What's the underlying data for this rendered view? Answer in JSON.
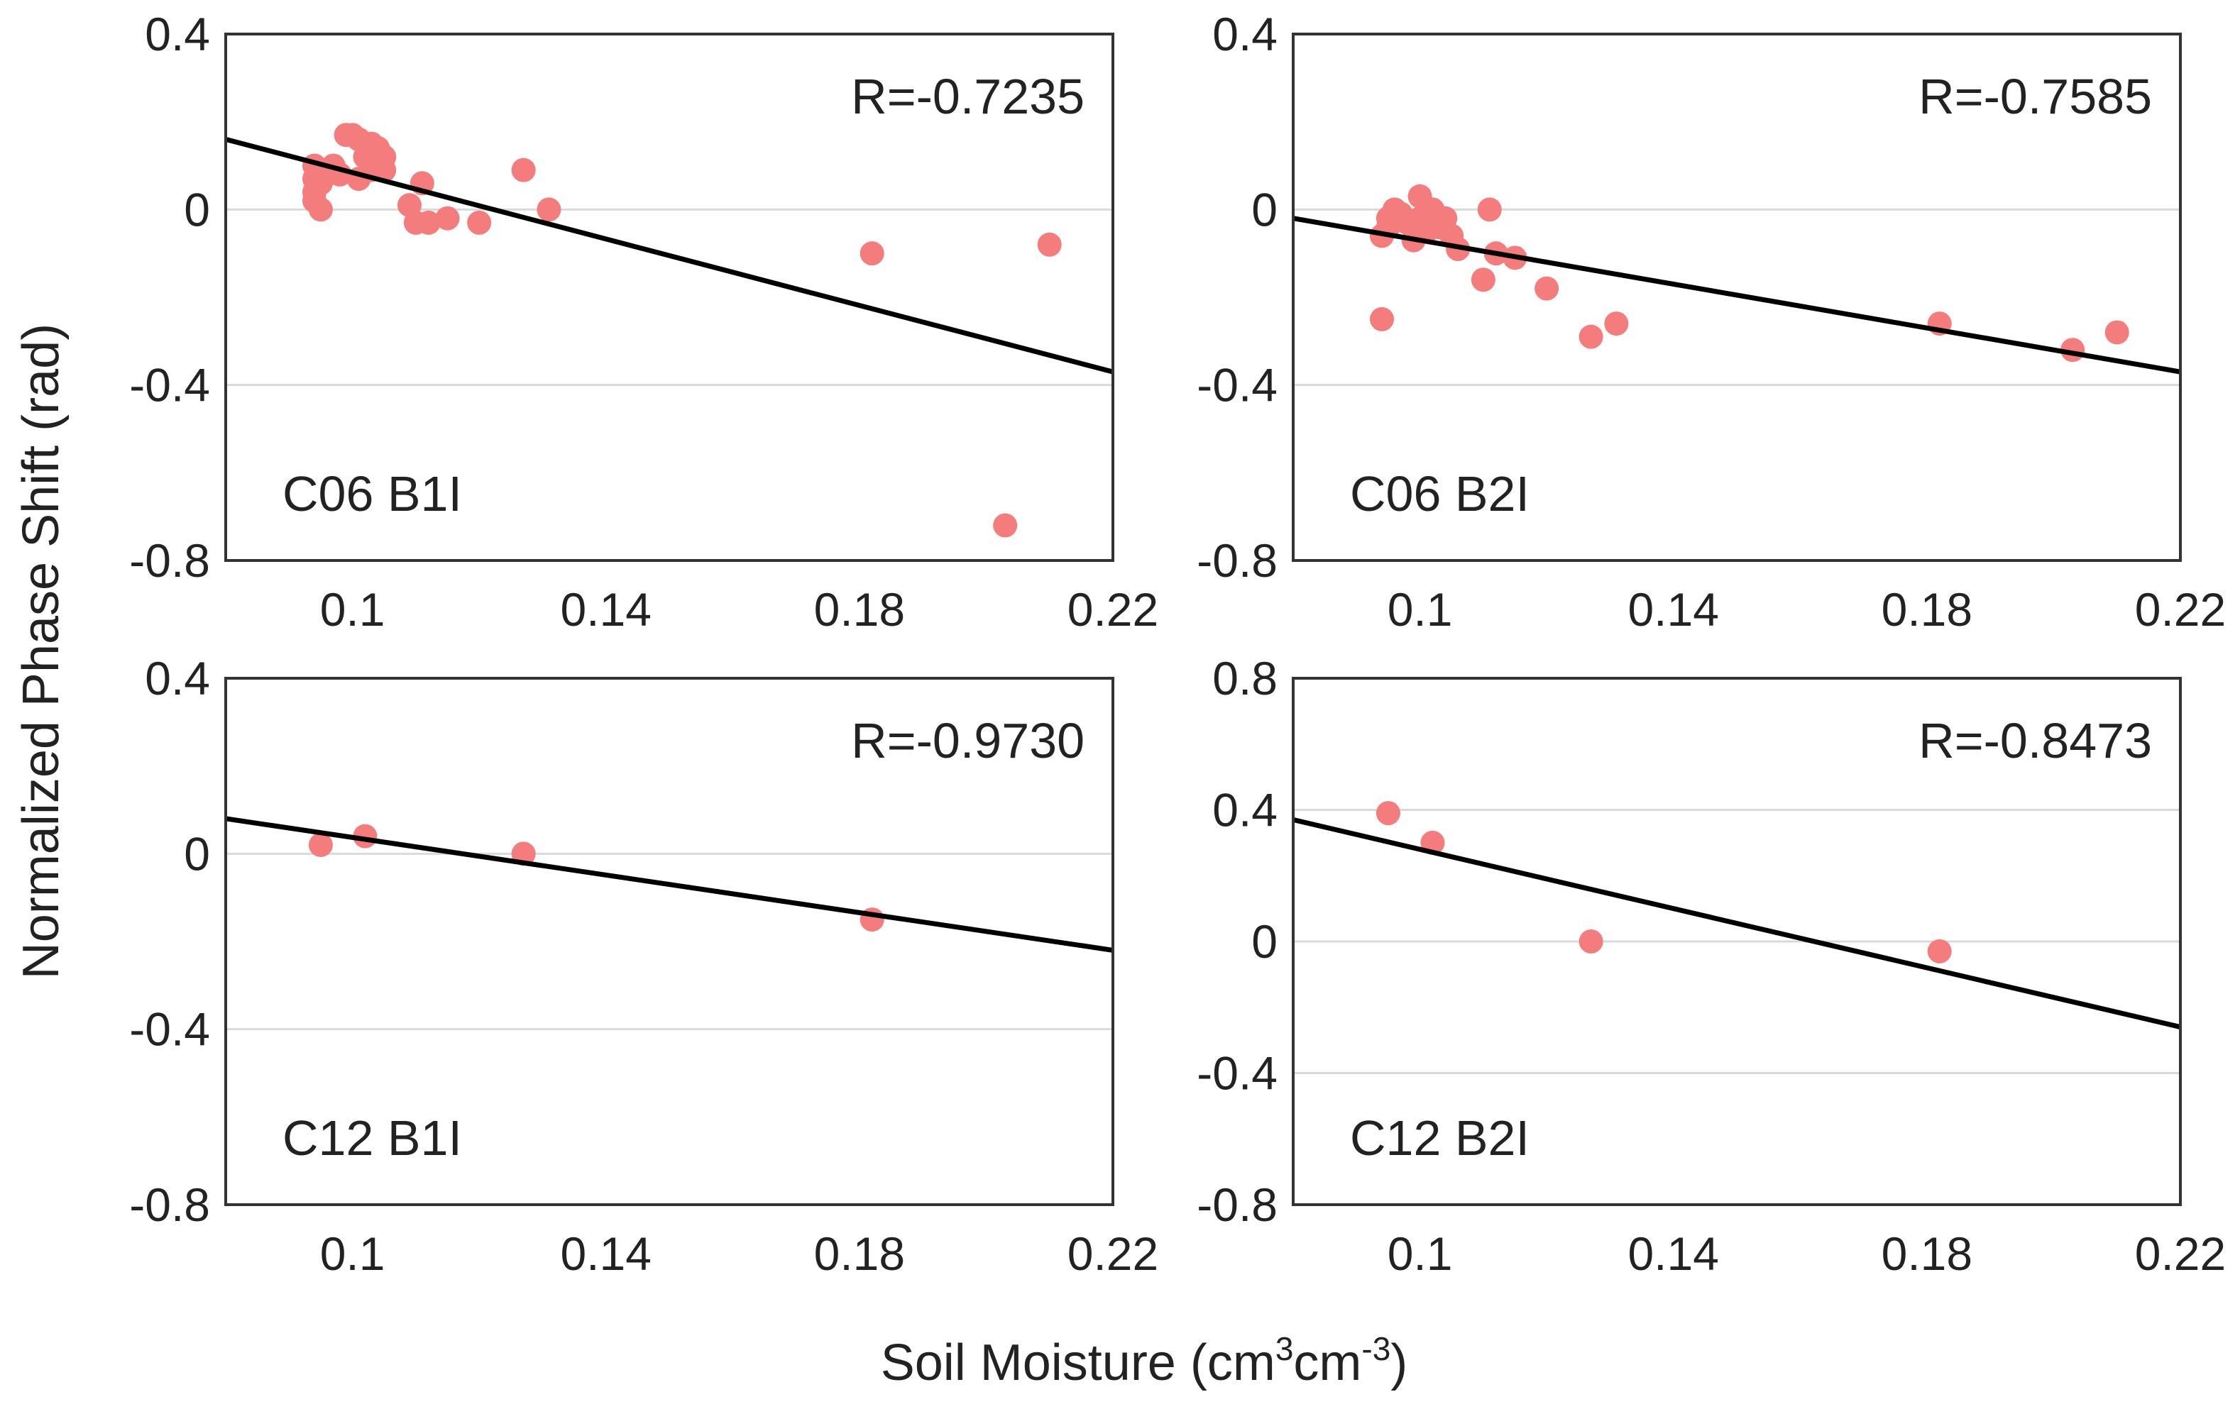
{
  "colors": {
    "point": "#f47c7c",
    "line": "#000000",
    "grid": "#d9d9d9",
    "frame": "#333333"
  },
  "figure": {
    "ylabel": "Normalized Phase Shift (rad)",
    "xlabel_main": "Soil Moisture (cm",
    "xlabel_sup1": "3",
    "xlabel_mid": "cm",
    "xlabel_sup2": "-3",
    "xlabel_end": ")"
  },
  "chart_data": [
    {
      "type": "scatter",
      "panel_label": "C06 B1I",
      "annotation": "R=-0.7235",
      "legend_position": "top-right",
      "xlim": [
        0.08,
        0.22
      ],
      "ylim": [
        -0.8,
        0.4
      ],
      "xticks": [
        0.1,
        0.14,
        0.18,
        0.22
      ],
      "xtick_labels": [
        "0.1",
        "0.14",
        "0.18",
        "0.22"
      ],
      "yticks": [
        0.4,
        0,
        -0.4,
        -0.8
      ],
      "ytick_labels": [
        "0.4",
        "0",
        "-0.4",
        "-0.8"
      ],
      "grid": true,
      "points": [
        [
          0.094,
          0.1
        ],
        [
          0.094,
          0.07
        ],
        [
          0.094,
          0.04
        ],
        [
          0.094,
          0.02
        ],
        [
          0.095,
          0.0
        ],
        [
          0.095,
          0.06
        ],
        [
          0.096,
          0.08
        ],
        [
          0.097,
          0.1
        ],
        [
          0.098,
          0.08
        ],
        [
          0.099,
          0.17
        ],
        [
          0.1,
          0.17
        ],
        [
          0.101,
          0.07
        ],
        [
          0.101,
          0.16
        ],
        [
          0.102,
          0.12
        ],
        [
          0.103,
          0.15
        ],
        [
          0.103,
          0.09
        ],
        [
          0.104,
          0.1
        ],
        [
          0.104,
          0.14
        ],
        [
          0.105,
          0.12
        ],
        [
          0.105,
          0.09
        ],
        [
          0.109,
          0.01
        ],
        [
          0.11,
          -0.03
        ],
        [
          0.111,
          0.06
        ],
        [
          0.112,
          -0.03
        ],
        [
          0.115,
          -0.02
        ],
        [
          0.12,
          -0.03
        ],
        [
          0.127,
          0.09
        ],
        [
          0.131,
          0.0
        ],
        [
          0.182,
          -0.1
        ],
        [
          0.203,
          -0.72
        ],
        [
          0.21,
          -0.08
        ]
      ],
      "fit_line": {
        "x": [
          0.08,
          0.22
        ],
        "y": [
          0.16,
          -0.37
        ]
      }
    },
    {
      "type": "scatter",
      "panel_label": "C06 B2I",
      "annotation": "R=-0.7585",
      "legend_position": "top-right",
      "xlim": [
        0.08,
        0.22
      ],
      "ylim": [
        -0.8,
        0.4
      ],
      "xticks": [
        0.1,
        0.14,
        0.18,
        0.22
      ],
      "xtick_labels": [
        "0.1",
        "0.14",
        "0.18",
        "0.22"
      ],
      "yticks": [
        0.4,
        0,
        -0.4,
        -0.8
      ],
      "ytick_labels": [
        "0.4",
        "0",
        "-0.4",
        "-0.8"
      ],
      "grid": true,
      "points": [
        [
          0.094,
          -0.06
        ],
        [
          0.094,
          -0.25
        ],
        [
          0.095,
          -0.02
        ],
        [
          0.095,
          -0.04
        ],
        [
          0.096,
          0.0
        ],
        [
          0.097,
          -0.01
        ],
        [
          0.098,
          -0.03
        ],
        [
          0.099,
          -0.07
        ],
        [
          0.1,
          0.03
        ],
        [
          0.1,
          -0.02
        ],
        [
          0.101,
          -0.05
        ],
        [
          0.102,
          0.0
        ],
        [
          0.102,
          -0.03
        ],
        [
          0.103,
          -0.04
        ],
        [
          0.104,
          -0.02
        ],
        [
          0.105,
          -0.06
        ],
        [
          0.106,
          -0.09
        ],
        [
          0.11,
          -0.16
        ],
        [
          0.111,
          0.0
        ],
        [
          0.112,
          -0.1
        ],
        [
          0.115,
          -0.11
        ],
        [
          0.12,
          -0.18
        ],
        [
          0.127,
          -0.29
        ],
        [
          0.131,
          -0.26
        ],
        [
          0.182,
          -0.26
        ],
        [
          0.203,
          -0.32
        ],
        [
          0.21,
          -0.28
        ]
      ],
      "fit_line": {
        "x": [
          0.08,
          0.22
        ],
        "y": [
          -0.02,
          -0.37
        ]
      }
    },
    {
      "type": "scatter",
      "panel_label": "C12 B1I",
      "annotation": "R=-0.9730",
      "legend_position": "top-right",
      "xlim": [
        0.08,
        0.22
      ],
      "ylim": [
        -0.8,
        0.4
      ],
      "xticks": [
        0.1,
        0.14,
        0.18,
        0.22
      ],
      "xtick_labels": [
        "0.1",
        "0.14",
        "0.18",
        "0.22"
      ],
      "yticks": [
        0.4,
        0,
        -0.4,
        -0.8
      ],
      "ytick_labels": [
        "0.4",
        "0",
        "-0.4",
        "-0.8"
      ],
      "grid": true,
      "points": [
        [
          0.095,
          0.02
        ],
        [
          0.102,
          0.04
        ],
        [
          0.127,
          0.0
        ],
        [
          0.182,
          -0.15
        ]
      ],
      "fit_line": {
        "x": [
          0.08,
          0.22
        ],
        "y": [
          0.08,
          -0.22
        ]
      }
    },
    {
      "type": "scatter",
      "panel_label": "C12 B2I",
      "annotation": "R=-0.8473",
      "legend_position": "top-right",
      "xlim": [
        0.08,
        0.22
      ],
      "ylim": [
        -0.8,
        0.8
      ],
      "xticks": [
        0.1,
        0.14,
        0.18,
        0.22
      ],
      "xtick_labels": [
        "0.1",
        "0.14",
        "0.18",
        "0.22"
      ],
      "yticks": [
        0.8,
        0.4,
        0,
        -0.4,
        -0.8
      ],
      "ytick_labels": [
        "0.8",
        "0.4",
        "0",
        "-0.4",
        "-0.8"
      ],
      "grid": true,
      "points": [
        [
          0.095,
          0.39
        ],
        [
          0.102,
          0.3
        ],
        [
          0.127,
          0.0
        ],
        [
          0.182,
          -0.03
        ]
      ],
      "fit_line": {
        "x": [
          0.08,
          0.22
        ],
        "y": [
          0.37,
          -0.26
        ]
      }
    }
  ]
}
